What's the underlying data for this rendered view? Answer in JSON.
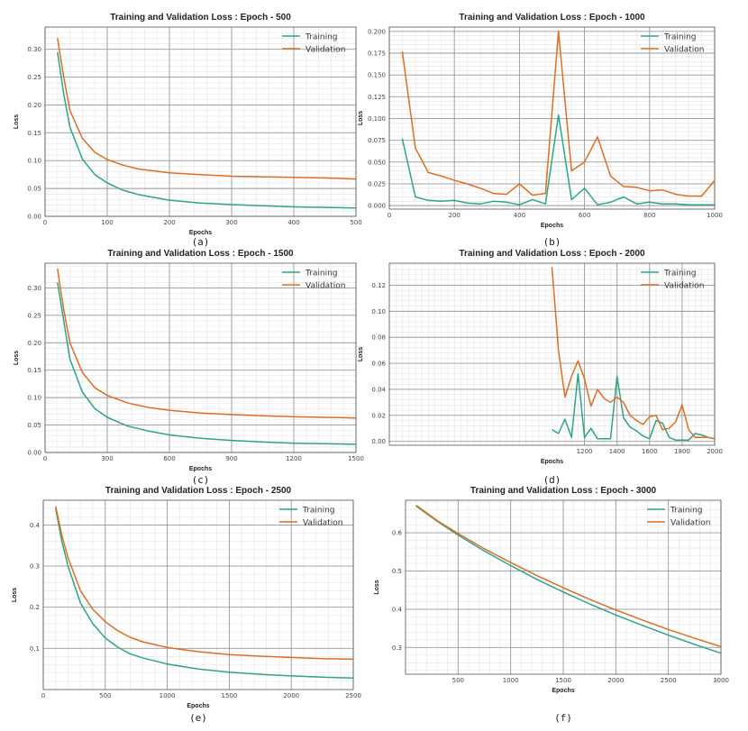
{
  "colors": {
    "training": "#2aa58a",
    "validation": "#e06d1f",
    "major_grid": "#999999",
    "minor_grid": "#e4e4e4",
    "frame": "#555555"
  },
  "legend": {
    "training": "Training",
    "validation": "Validation"
  },
  "chart_data": [
    {
      "type": "line",
      "caption": "(a)",
      "title": "Training and Validation Loss : Epoch - 500",
      "xlabel": "Epochs",
      "ylabel": "Loss",
      "xlim": [
        0,
        500
      ],
      "ylim": [
        0,
        0.34
      ],
      "xticks": [
        0,
        100,
        200,
        300,
        400,
        500
      ],
      "yticks": [
        0.0,
        0.05,
        0.1,
        0.15,
        0.2,
        0.25,
        0.3
      ],
      "ytick_decimals": 2,
      "legend_position": "top-right",
      "series": [
        {
          "name": "Training",
          "x": [
            20,
            30,
            40,
            60,
            80,
            100,
            125,
            150,
            200,
            250,
            300,
            350,
            400,
            450,
            500
          ],
          "y": [
            0.295,
            0.22,
            0.16,
            0.103,
            0.075,
            0.06,
            0.047,
            0.039,
            0.029,
            0.024,
            0.021,
            0.019,
            0.017,
            0.016,
            0.015
          ]
        },
        {
          "name": "Validation",
          "x": [
            20,
            30,
            40,
            60,
            80,
            100,
            125,
            150,
            200,
            250,
            300,
            350,
            400,
            450,
            500
          ],
          "y": [
            0.32,
            0.25,
            0.19,
            0.14,
            0.115,
            0.102,
            0.092,
            0.085,
            0.078,
            0.075,
            0.072,
            0.071,
            0.07,
            0.069,
            0.067
          ]
        }
      ]
    },
    {
      "type": "line",
      "caption": "(b)",
      "title": "Training and Validation Loss : Epoch - 1000",
      "xlabel": "Epochs",
      "ylabel": "Loss",
      "xlim": [
        0,
        1000
      ],
      "ylim": [
        -0.004,
        0.205
      ],
      "xticks": [
        0,
        200,
        400,
        600,
        800,
        1000
      ],
      "yticks": [
        0.0,
        0.025,
        0.05,
        0.075,
        0.1,
        0.125,
        0.15,
        0.175,
        0.2
      ],
      "ytick_decimals": 3,
      "legend_position": "top-right",
      "series": [
        {
          "name": "Training",
          "x": [
            40,
            80,
            120,
            160,
            200,
            240,
            280,
            320,
            360,
            400,
            440,
            480,
            520,
            560,
            600,
            640,
            680,
            720,
            760,
            800,
            840,
            880,
            920,
            960,
            1000
          ],
          "y": [
            0.077,
            0.01,
            0.006,
            0.005,
            0.006,
            0.003,
            0.002,
            0.005,
            0.004,
            0.001,
            0.007,
            0.002,
            0.104,
            0.007,
            0.02,
            0.001,
            0.004,
            0.01,
            0.002,
            0.004,
            0.002,
            0.002,
            0.001,
            0.001,
            0.001
          ]
        },
        {
          "name": "Validation",
          "x": [
            40,
            80,
            120,
            160,
            200,
            240,
            280,
            320,
            360,
            400,
            440,
            480,
            520,
            560,
            600,
            640,
            680,
            720,
            760,
            800,
            840,
            880,
            920,
            960,
            1000
          ],
          "y": [
            0.177,
            0.066,
            0.038,
            0.034,
            0.029,
            0.025,
            0.02,
            0.014,
            0.013,
            0.025,
            0.012,
            0.014,
            0.2,
            0.04,
            0.05,
            0.079,
            0.034,
            0.022,
            0.021,
            0.017,
            0.018,
            0.013,
            0.011,
            0.011,
            0.029
          ]
        }
      ]
    },
    {
      "type": "line",
      "caption": "(c)",
      "title": "Training and Validation Loss : Epoch - 1500",
      "xlabel": "Epochs",
      "ylabel": "Loss",
      "xlim": [
        0,
        1500
      ],
      "ylim": [
        0,
        0.345
      ],
      "xticks": [
        0,
        300,
        600,
        900,
        1200,
        1500
      ],
      "yticks": [
        0.0,
        0.05,
        0.1,
        0.15,
        0.2,
        0.25,
        0.3
      ],
      "ytick_decimals": 2,
      "legend_position": "top-right",
      "series": [
        {
          "name": "Training",
          "x": [
            60,
            90,
            120,
            180,
            240,
            300,
            400,
            500,
            600,
            750,
            900,
            1050,
            1200,
            1350,
            1500
          ],
          "y": [
            0.31,
            0.24,
            0.17,
            0.11,
            0.08,
            0.064,
            0.048,
            0.039,
            0.032,
            0.026,
            0.022,
            0.019,
            0.017,
            0.016,
            0.015
          ]
        },
        {
          "name": "Validation",
          "x": [
            60,
            90,
            120,
            180,
            240,
            300,
            400,
            500,
            600,
            750,
            900,
            1050,
            1200,
            1350,
            1500
          ],
          "y": [
            0.335,
            0.26,
            0.2,
            0.146,
            0.118,
            0.104,
            0.09,
            0.082,
            0.077,
            0.072,
            0.069,
            0.067,
            0.065,
            0.064,
            0.063
          ]
        }
      ]
    },
    {
      "type": "line",
      "caption": "(d)",
      "title": "Training and Validation Loss : Epoch - 2000",
      "xlabel": "Epochs",
      "ylabel": "Loss",
      "xlim": [
        0,
        2000
      ],
      "ylim": [
        -0.003,
        0.137
      ],
      "xticks": [
        1200,
        1400,
        1600,
        1800,
        2000
      ],
      "yticks": [
        0.0,
        0.02,
        0.04,
        0.06,
        0.08,
        0.1,
        0.12
      ],
      "ytick_decimals": 2,
      "legend_position": "top-right",
      "series": [
        {
          "name": "Training",
          "x": [
            1000,
            1040,
            1080,
            1120,
            1160,
            1200,
            1240,
            1280,
            1320,
            1360,
            1400,
            1440,
            1480,
            1520,
            1560,
            1600,
            1640,
            1680,
            1720,
            1760,
            1800,
            1840,
            1880,
            1920,
            1960,
            2000
          ],
          "y": [
            0.009,
            0.006,
            0.017,
            0.003,
            0.052,
            0.003,
            0.01,
            0.002,
            0.002,
            0.002,
            0.05,
            0.018,
            0.011,
            0.008,
            0.004,
            0.002,
            0.016,
            0.014,
            0.003,
            0.001,
            0.001,
            0.001,
            0.006,
            0.005,
            0.003,
            0.002
          ]
        },
        {
          "name": "Validation",
          "x": [
            1000,
            1040,
            1080,
            1120,
            1160,
            1200,
            1240,
            1280,
            1320,
            1360,
            1400,
            1440,
            1480,
            1520,
            1560,
            1600,
            1640,
            1680,
            1720,
            1760,
            1800,
            1840,
            1880,
            1920,
            1960,
            2000
          ],
          "y": [
            0.134,
            0.07,
            0.034,
            0.05,
            0.062,
            0.048,
            0.027,
            0.04,
            0.033,
            0.03,
            0.034,
            0.03,
            0.02,
            0.016,
            0.013,
            0.019,
            0.02,
            0.009,
            0.01,
            0.015,
            0.028,
            0.009,
            0.003,
            0.003,
            0.003,
            0.002
          ]
        }
      ]
    },
    {
      "type": "line",
      "caption": "(e)",
      "title": "Training and Validation Loss : Epoch - 2500",
      "xlabel": "Epochs",
      "ylabel": "Loss",
      "xlim": [
        0,
        2500
      ],
      "ylim": [
        0,
        0.46
      ],
      "xticks": [
        0,
        500,
        1000,
        1500,
        2000,
        2500
      ],
      "yticks": [
        0.1,
        0.2,
        0.3,
        0.4
      ],
      "ytick_decimals": 1,
      "legend_position": "top-right",
      "series": [
        {
          "name": "Training",
          "x": [
            100,
            150,
            200,
            300,
            400,
            500,
            600,
            700,
            800,
            1000,
            1250,
            1500,
            1750,
            2000,
            2250,
            2500
          ],
          "y": [
            0.44,
            0.36,
            0.3,
            0.21,
            0.16,
            0.125,
            0.103,
            0.087,
            0.077,
            0.062,
            0.05,
            0.042,
            0.037,
            0.033,
            0.03,
            0.028
          ]
        },
        {
          "name": "Validation",
          "x": [
            100,
            150,
            200,
            300,
            400,
            500,
            600,
            700,
            800,
            1000,
            1250,
            1500,
            1750,
            2000,
            2250,
            2500
          ],
          "y": [
            0.445,
            0.375,
            0.32,
            0.24,
            0.195,
            0.165,
            0.143,
            0.127,
            0.116,
            0.102,
            0.092,
            0.085,
            0.081,
            0.078,
            0.075,
            0.074
          ]
        }
      ]
    },
    {
      "type": "line",
      "caption": "(f)",
      "title": "Training and Validation Loss : Epoch - 3000",
      "xlabel": "Epochs",
      "ylabel": "Loss",
      "xlim": [
        0,
        3000
      ],
      "ylim": [
        0.23,
        0.685
      ],
      "xticks": [
        500,
        1000,
        1500,
        2000,
        2500,
        3000
      ],
      "yticks": [
        0.3,
        0.4,
        0.5,
        0.6
      ],
      "ytick_decimals": 1,
      "legend_position": "top-right",
      "series": [
        {
          "name": "Training",
          "x": [
            100,
            300,
            500,
            750,
            1000,
            1250,
            1500,
            1750,
            2000,
            2250,
            2500,
            2750,
            3000
          ],
          "y": [
            0.67,
            0.63,
            0.594,
            0.552,
            0.514,
            0.478,
            0.445,
            0.414,
            0.385,
            0.358,
            0.332,
            0.308,
            0.285
          ]
        },
        {
          "name": "Validation",
          "x": [
            100,
            300,
            500,
            750,
            1000,
            1250,
            1500,
            1750,
            2000,
            2250,
            2500,
            2750,
            3000
          ],
          "y": [
            0.672,
            0.632,
            0.598,
            0.558,
            0.522,
            0.488,
            0.456,
            0.426,
            0.398,
            0.372,
            0.347,
            0.324,
            0.302
          ]
        }
      ]
    }
  ]
}
